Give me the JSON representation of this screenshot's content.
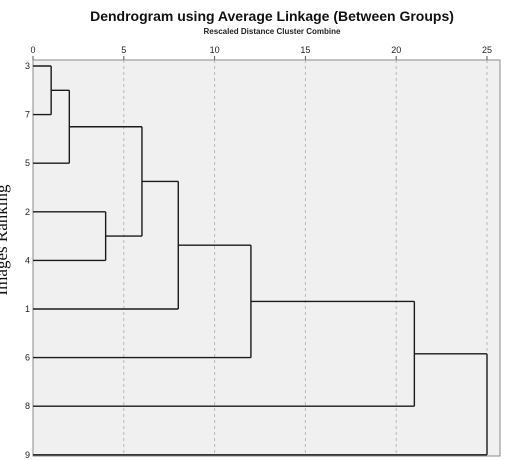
{
  "chart_data": {
    "type": "dendrogram",
    "title": "Dendrogram using Average Linkage (Between Groups)",
    "xlabel": "Rescaled Distance Cluster Combine",
    "ylabel": "Images Ranking",
    "xlim": [
      0,
      25
    ],
    "xticks": [
      0,
      5,
      10,
      15,
      20,
      25
    ],
    "grid": true,
    "leaves": [
      "3",
      "7",
      "5",
      "2",
      "4",
      "1",
      "6",
      "8",
      "9"
    ],
    "merges": [
      {
        "left": "3",
        "right": "7",
        "distance": 1.0
      },
      {
        "left": "3-7",
        "right": "5",
        "distance": 2.0
      },
      {
        "left": "2",
        "right": "4",
        "distance": 4.0
      },
      {
        "left": "3-7-5",
        "right": "2-4",
        "distance": 6.0
      },
      {
        "left": "3-7-5-2-4",
        "right": "1",
        "distance": 8.0
      },
      {
        "left": "3-7-5-2-4-1",
        "right": "6",
        "distance": 12.0
      },
      {
        "left": "3-7-5-2-4-1-6",
        "right": "8",
        "distance": 21.0
      },
      {
        "left": "3-7-5-2-4-1-6-8",
        "right": "9",
        "distance": 25.0
      }
    ]
  }
}
